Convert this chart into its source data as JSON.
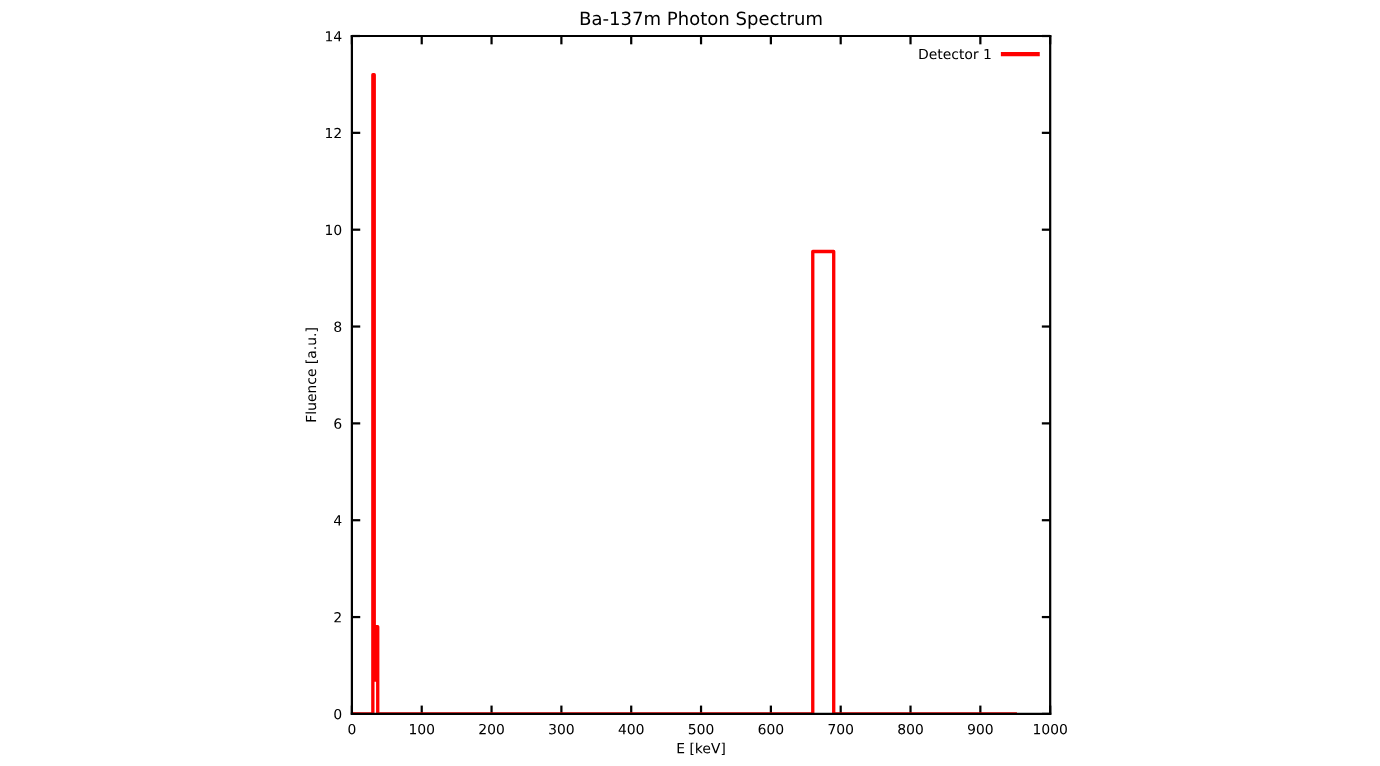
{
  "chart_data": {
    "type": "step",
    "title": "Ba-137m Photon Spectrum",
    "xlabel": "E [keV]",
    "ylabel": "Fluence [a.u.]",
    "series": [
      {
        "name": "Detector 1",
        "color": "#ff0000",
        "x": [
          0,
          30,
          32,
          34,
          37,
          660,
          690,
          950
        ],
        "values": [
          0,
          13.2,
          0.7,
          1.8,
          0,
          9.55,
          0,
          0
        ]
      }
    ],
    "xlim": [
      0,
      1000
    ],
    "xticks": [
      0,
      100,
      200,
      300,
      400,
      500,
      600,
      700,
      800,
      900,
      1000
    ],
    "ylim": [
      0,
      14
    ],
    "yticks": [
      0,
      2,
      4,
      6,
      8,
      10,
      12,
      14
    ],
    "grid": false,
    "legend": "top right"
  }
}
